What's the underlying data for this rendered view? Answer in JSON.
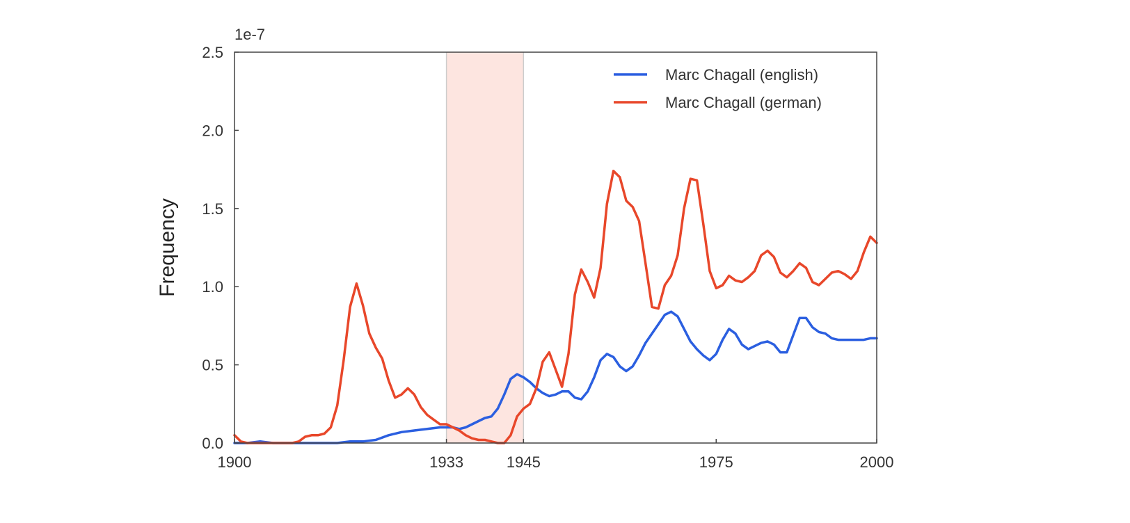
{
  "chart_data": {
    "type": "line",
    "title": "",
    "xlabel": "",
    "ylabel": "Frequency",
    "y_offset_label": "1e-7",
    "xlim": [
      1900,
      2000
    ],
    "ylim": [
      0,
      2.5
    ],
    "x_ticks": [
      1900,
      1933,
      1945,
      1975,
      2000
    ],
    "y_ticks": [
      "0.0",
      "0.5",
      "1.0",
      "1.5",
      "2.0",
      "2.5"
    ],
    "y_tick_values": [
      0,
      0.5,
      1.0,
      1.5,
      2.0,
      2.5
    ],
    "grid": false,
    "legend_position": "top-right",
    "highlight_range": [
      1933,
      1945
    ],
    "colors": {
      "highlight": "#fde5e0",
      "english": "#2b5fe0",
      "german": "#e8472a"
    },
    "series": [
      {
        "name": "Marc Chagall (english)",
        "color": "#2b5fe0",
        "x": [
          1900,
          1902,
          1904,
          1906,
          1908,
          1910,
          1912,
          1914,
          1916,
          1918,
          1920,
          1922,
          1924,
          1926,
          1928,
          1930,
          1932,
          1934,
          1935,
          1936,
          1937,
          1938,
          1939,
          1940,
          1941,
          1942,
          1943,
          1944,
          1945,
          1946,
          1947,
          1948,
          1949,
          1950,
          1951,
          1952,
          1953,
          1954,
          1955,
          1956,
          1957,
          1958,
          1959,
          1960,
          1961,
          1962,
          1963,
          1964,
          1965,
          1966,
          1967,
          1968,
          1969,
          1970,
          1971,
          1972,
          1973,
          1974,
          1975,
          1976,
          1977,
          1978,
          1979,
          1980,
          1981,
          1982,
          1983,
          1984,
          1985,
          1986,
          1987,
          1988,
          1989,
          1990,
          1991,
          1992,
          1993,
          1994,
          1995,
          1996,
          1997,
          1998,
          1999,
          2000
        ],
        "values": [
          0.0,
          0.0,
          0.01,
          0.0,
          0.0,
          0.0,
          0.0,
          0.0,
          0.0,
          0.01,
          0.01,
          0.02,
          0.05,
          0.07,
          0.08,
          0.09,
          0.1,
          0.1,
          0.09,
          0.1,
          0.12,
          0.14,
          0.16,
          0.17,
          0.22,
          0.31,
          0.41,
          0.44,
          0.42,
          0.39,
          0.35,
          0.32,
          0.3,
          0.31,
          0.33,
          0.33,
          0.29,
          0.28,
          0.33,
          0.42,
          0.53,
          0.57,
          0.55,
          0.49,
          0.46,
          0.49,
          0.56,
          0.64,
          0.7,
          0.76,
          0.82,
          0.84,
          0.81,
          0.73,
          0.65,
          0.6,
          0.56,
          0.53,
          0.57,
          0.66,
          0.73,
          0.7,
          0.63,
          0.6,
          0.62,
          0.64,
          0.65,
          0.63,
          0.58,
          0.58,
          0.69,
          0.8,
          0.8,
          0.74,
          0.71,
          0.7,
          0.67,
          0.66,
          0.66,
          0.66,
          0.66,
          0.66,
          0.67,
          0.67
        ]
      },
      {
        "name": "Marc Chagall (german)",
        "color": "#e8472a",
        "x": [
          1900,
          1901,
          1902,
          1903,
          1904,
          1905,
          1906,
          1907,
          1908,
          1909,
          1910,
          1911,
          1912,
          1913,
          1914,
          1915,
          1916,
          1917,
          1918,
          1919,
          1920,
          1921,
          1922,
          1923,
          1924,
          1925,
          1926,
          1927,
          1928,
          1929,
          1930,
          1931,
          1932,
          1933,
          1934,
          1935,
          1936,
          1937,
          1938,
          1939,
          1940,
          1941,
          1942,
          1943,
          1944,
          1945,
          1946,
          1947,
          1948,
          1949,
          1950,
          1951,
          1952,
          1953,
          1954,
          1955,
          1956,
          1957,
          1958,
          1959,
          1960,
          1961,
          1962,
          1963,
          1964,
          1965,
          1966,
          1967,
          1968,
          1969,
          1970,
          1971,
          1972,
          1973,
          1974,
          1975,
          1976,
          1977,
          1978,
          1979,
          1980,
          1981,
          1982,
          1983,
          1984,
          1985,
          1986,
          1987,
          1988,
          1989,
          1990,
          1991,
          1992,
          1993,
          1994,
          1995,
          1996,
          1997,
          1998,
          1999,
          2000
        ],
        "values": [
          0.05,
          0.01,
          0.0,
          0.0,
          0.0,
          0.0,
          0.0,
          0.0,
          0.0,
          0.0,
          0.01,
          0.04,
          0.05,
          0.05,
          0.06,
          0.1,
          0.24,
          0.53,
          0.87,
          1.02,
          0.88,
          0.7,
          0.61,
          0.54,
          0.4,
          0.29,
          0.31,
          0.35,
          0.31,
          0.23,
          0.18,
          0.15,
          0.12,
          0.12,
          0.1,
          0.08,
          0.05,
          0.03,
          0.02,
          0.02,
          0.01,
          0.0,
          0.0,
          0.05,
          0.17,
          0.22,
          0.25,
          0.35,
          0.52,
          0.58,
          0.47,
          0.36,
          0.57,
          0.95,
          1.11,
          1.03,
          0.93,
          1.12,
          1.53,
          1.74,
          1.7,
          1.55,
          1.51,
          1.42,
          1.15,
          0.87,
          0.86,
          1.01,
          1.07,
          1.2,
          1.5,
          1.69,
          1.68,
          1.4,
          1.1,
          0.99,
          1.01,
          1.07,
          1.04,
          1.03,
          1.06,
          1.1,
          1.2,
          1.23,
          1.19,
          1.09,
          1.06,
          1.1,
          1.15,
          1.12,
          1.03,
          1.01,
          1.05,
          1.09,
          1.1,
          1.08,
          1.05,
          1.1,
          1.22,
          1.32,
          1.28
        ]
      }
    ]
  }
}
